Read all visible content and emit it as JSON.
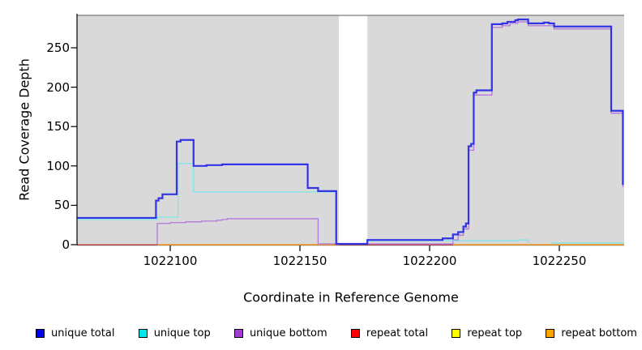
{
  "chart_data": {
    "type": "line",
    "title": "",
    "xlabel": "Coordinate in Reference Genome",
    "ylabel": "Read Coverage Depth",
    "xlim": [
      1022064,
      1022275
    ],
    "ylim": [
      0,
      292
    ],
    "x_ticks": [
      1022100,
      1022150,
      1022200,
      1022250
    ],
    "y_ticks": [
      0,
      50,
      100,
      150,
      200,
      250
    ],
    "grid": false,
    "legend_position": "bottom",
    "background": {
      "plot_color": "#d9d9d9",
      "gap_band_x": [
        1022165,
        1022176
      ],
      "band_color": "#ffffff",
      "top_edge_color": "#909090",
      "axis_color": "#000000"
    },
    "draw_order": [
      "repeat top",
      "repeat total",
      "repeat bottom",
      "unique bottom",
      "unique top",
      "unique total"
    ],
    "series": [
      {
        "name": "unique total",
        "legend_color": "#0000f0",
        "line_color": "#3333e6",
        "line_width": 2.2,
        "points": [
          [
            1022064,
            34
          ],
          [
            1022094.5,
            56
          ],
          [
            1022095.5,
            59
          ],
          [
            1022097,
            64
          ],
          [
            1022102.5,
            131
          ],
          [
            1022104,
            133
          ],
          [
            1022109,
            100
          ],
          [
            1022114,
            101
          ],
          [
            1022120,
            102
          ],
          [
            1022153,
            72
          ],
          [
            1022157,
            68
          ],
          [
            1022164,
            1
          ],
          [
            1022176,
            6
          ],
          [
            1022205,
            8
          ],
          [
            1022209,
            13
          ],
          [
            1022211,
            16
          ],
          [
            1022213,
            23
          ],
          [
            1022214,
            27
          ],
          [
            1022215,
            125
          ],
          [
            1022216,
            128
          ],
          [
            1022217,
            193
          ],
          [
            1022218,
            196
          ],
          [
            1022224,
            280
          ],
          [
            1022228,
            281
          ],
          [
            1022230,
            283
          ],
          [
            1022233,
            285
          ],
          [
            1022234,
            286
          ],
          [
            1022238,
            281
          ],
          [
            1022244,
            282
          ],
          [
            1022246,
            281
          ],
          [
            1022248,
            277
          ],
          [
            1022270,
            170
          ],
          [
            1022274.5,
            76
          ]
        ]
      },
      {
        "name": "unique top",
        "legend_color": "#00e5ee",
        "line_color": "#7de4e8",
        "line_width": 1.3,
        "points": [
          [
            1022064,
            32
          ],
          [
            1022095,
            35
          ],
          [
            1022103,
            103
          ],
          [
            1022109,
            67
          ],
          [
            1022164,
            1
          ],
          [
            1022176,
            5
          ],
          [
            1022234,
            6
          ],
          [
            1022238,
            0
          ],
          null,
          [
            1022247,
            2
          ],
          [
            1022275,
            2
          ]
        ]
      },
      {
        "name": "unique bottom",
        "legend_color": "#a23bd4",
        "line_color": "#b475dc",
        "line_width": 1.3,
        "points": [
          [
            1022094.8,
            0
          ],
          [
            1022095,
            27
          ],
          [
            1022100,
            28
          ],
          [
            1022106,
            29
          ],
          [
            1022112,
            30
          ],
          [
            1022118,
            31
          ],
          [
            1022120,
            32
          ],
          [
            1022122,
            33
          ],
          [
            1022157,
            1
          ],
          [
            1022209,
            6
          ],
          [
            1022211,
            12
          ],
          [
            1022213,
            20
          ],
          [
            1022215,
            120
          ],
          [
            1022217,
            190
          ],
          [
            1022224,
            276
          ],
          [
            1022228,
            278
          ],
          [
            1022231,
            281
          ],
          [
            1022234,
            283
          ],
          [
            1022238,
            278
          ],
          [
            1022248,
            274
          ],
          [
            1022270,
            167
          ],
          [
            1022274.5,
            73
          ]
        ]
      },
      {
        "name": "repeat total",
        "legend_color": "#ff0000",
        "line_color": "#d9536e",
        "line_width": 1.3,
        "points": [
          [
            1022064,
            0
          ],
          [
            1022275,
            0
          ]
        ]
      },
      {
        "name": "repeat top",
        "legend_color": "#ffff00",
        "line_color": "#f0e030",
        "line_width": 1.3,
        "points": [
          [
            1022064,
            0
          ],
          [
            1022275,
            0
          ]
        ]
      },
      {
        "name": "repeat bottom",
        "legend_color": "#ffa500",
        "line_color": "#f5a22e",
        "line_width": 1.5,
        "points": [
          [
            1022095,
            0
          ],
          [
            1022165,
            0
          ],
          null,
          [
            1022209,
            0
          ],
          [
            1022275,
            0
          ]
        ]
      }
    ]
  }
}
